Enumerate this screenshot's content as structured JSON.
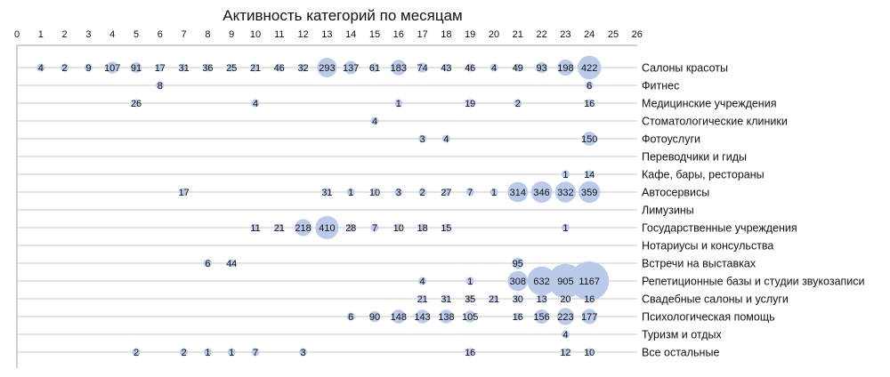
{
  "chart_data": {
    "type": "bubble",
    "title": "Активность категорий по месяцам",
    "xlim": [
      0,
      26
    ],
    "x_ticks": [
      "0",
      "1",
      "2",
      "3",
      "4",
      "5",
      "6",
      "7",
      "8",
      "9",
      "10",
      "11",
      "12",
      "13",
      "14",
      "15",
      "16",
      "17",
      "18",
      "19",
      "20",
      "21",
      "22",
      "23",
      "24",
      "25",
      "26"
    ],
    "grid": true,
    "colors": {
      "bubble": "#b9cbe9",
      "grid": "#c8c8c8",
      "text": "#111111"
    },
    "categories": [
      "Салоны красоты",
      "Фитнес",
      "Медицинские учреждения",
      "Стоматологические клиники",
      "Фотоуслуги",
      "Переводчики и гиды",
      "Кафе, бары, рестораны",
      "Автосервисы",
      "Лимузины",
      "Государственные учреждения",
      "Нотариусы и консульства",
      "Встречи на выставках",
      "Репетиционные базы и студии звукозаписи",
      "Свадебные салоны и услуги",
      "Психологическая помощь",
      "Туризм и отдых",
      "Все остальные"
    ],
    "series": [
      {
        "points": [
          [
            1,
            4
          ],
          [
            2,
            2
          ],
          [
            3,
            9
          ],
          [
            4,
            107
          ],
          [
            5,
            91
          ],
          [
            6,
            17
          ],
          [
            7,
            31
          ],
          [
            8,
            36
          ],
          [
            9,
            25
          ],
          [
            10,
            21
          ],
          [
            11,
            46
          ],
          [
            12,
            32
          ],
          [
            13,
            293
          ],
          [
            14,
            137
          ],
          [
            15,
            61
          ],
          [
            16,
            183
          ],
          [
            17,
            74
          ],
          [
            18,
            43
          ],
          [
            19,
            46
          ],
          [
            20,
            4
          ],
          [
            21,
            49
          ],
          [
            22,
            93
          ],
          [
            23,
            198
          ],
          [
            24,
            422
          ]
        ]
      },
      {
        "points": [
          [
            6,
            8
          ],
          [
            24,
            6
          ]
        ]
      },
      {
        "points": [
          [
            5,
            26
          ],
          [
            10,
            4
          ],
          [
            16,
            1
          ],
          [
            19,
            19
          ],
          [
            21,
            2
          ],
          [
            24,
            16
          ]
        ]
      },
      {
        "points": [
          [
            15,
            4
          ]
        ]
      },
      {
        "points": [
          [
            17,
            3
          ],
          [
            18,
            4
          ],
          [
            24,
            150
          ]
        ]
      },
      {
        "points": []
      },
      {
        "points": [
          [
            23,
            1
          ],
          [
            24,
            14
          ]
        ]
      },
      {
        "points": [
          [
            7,
            17
          ],
          [
            13,
            31
          ],
          [
            14,
            1
          ],
          [
            15,
            10
          ],
          [
            16,
            3
          ],
          [
            17,
            2
          ],
          [
            18,
            27
          ],
          [
            19,
            7
          ],
          [
            20,
            1
          ],
          [
            21,
            314
          ],
          [
            22,
            346
          ],
          [
            23,
            332
          ],
          [
            24,
            359
          ]
        ]
      },
      {
        "points": []
      },
      {
        "points": [
          [
            10,
            11
          ],
          [
            11,
            21
          ],
          [
            12,
            218
          ],
          [
            13,
            410
          ],
          [
            14,
            28
          ],
          [
            15,
            7
          ],
          [
            16,
            10
          ],
          [
            17,
            18
          ],
          [
            18,
            15
          ],
          [
            23,
            1
          ]
        ]
      },
      {
        "points": []
      },
      {
        "points": [
          [
            8,
            6
          ],
          [
            9,
            44
          ],
          [
            21,
            95
          ]
        ]
      },
      {
        "points": [
          [
            17,
            4
          ],
          [
            19,
            1
          ],
          [
            21,
            308
          ],
          [
            22,
            632
          ],
          [
            23,
            905
          ],
          [
            24,
            1167
          ]
        ]
      },
      {
        "points": [
          [
            17,
            21
          ],
          [
            18,
            31
          ],
          [
            19,
            35
          ],
          [
            20,
            21
          ],
          [
            21,
            30
          ],
          [
            22,
            13
          ],
          [
            23,
            20
          ],
          [
            24,
            16
          ]
        ]
      },
      {
        "points": [
          [
            14,
            6
          ],
          [
            15,
            90
          ],
          [
            16,
            148
          ],
          [
            17,
            143
          ],
          [
            18,
            138
          ],
          [
            19,
            105
          ],
          [
            21,
            16
          ],
          [
            22,
            156
          ],
          [
            23,
            223
          ],
          [
            24,
            177
          ]
        ]
      },
      {
        "points": [
          [
            23,
            4
          ]
        ]
      },
      {
        "points": [
          [
            5,
            2
          ],
          [
            7,
            2
          ],
          [
            8,
            1
          ],
          [
            9,
            1
          ],
          [
            10,
            7
          ],
          [
            12,
            3
          ],
          [
            19,
            16
          ],
          [
            23,
            12
          ],
          [
            24,
            10
          ]
        ]
      }
    ]
  }
}
